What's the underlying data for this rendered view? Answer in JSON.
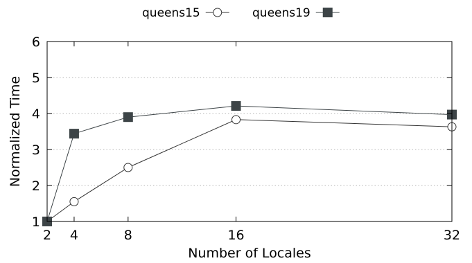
{
  "chart_data": {
    "type": "line",
    "title": "",
    "xlabel": "Number of Locales",
    "ylabel": "Normalized Time",
    "x": [
      2,
      4,
      8,
      16,
      32
    ],
    "x_ticks": [
      "2",
      "4",
      "8",
      "16",
      "32"
    ],
    "xlim": [
      2,
      32
    ],
    "ylim": [
      1,
      6
    ],
    "y_ticks": [
      "1",
      "2",
      "3",
      "4",
      "5",
      "6"
    ],
    "grid": "horizontal dotted",
    "legend_position": "top-center",
    "series": [
      {
        "name": "queens15",
        "marker": "open-circle",
        "color": "#333333",
        "values": [
          1.0,
          1.55,
          2.5,
          3.83,
          3.63
        ]
      },
      {
        "name": "queens19",
        "marker": "filled-square",
        "color": "#3d4447",
        "values": [
          1.0,
          3.44,
          3.9,
          4.21,
          3.97
        ]
      }
    ]
  }
}
